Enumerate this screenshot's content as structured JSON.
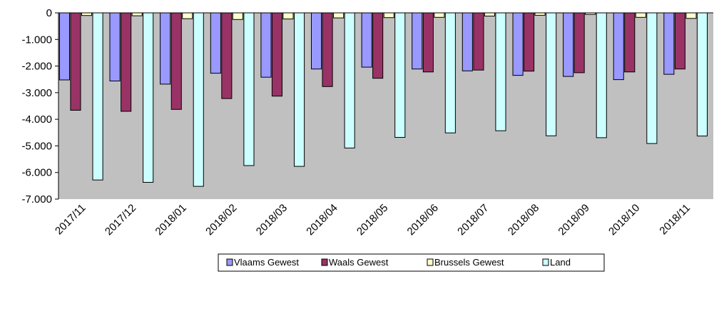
{
  "chart_data": {
    "type": "bar",
    "categories": [
      "2017/11",
      "2017/12",
      "2018/01",
      "2018/02",
      "2018/03",
      "2018/04",
      "2018/05",
      "2018/06",
      "2018/07",
      "2018/08",
      "2018/09",
      "2018/10",
      "2018/11"
    ],
    "series": [
      {
        "name": "Vlaams Gewest",
        "color": "#9999ff",
        "values": [
          -2520,
          -2560,
          -2680,
          -2270,
          -2420,
          -2110,
          -2040,
          -2110,
          -2180,
          -2350,
          -2390,
          -2510,
          -2310
        ]
      },
      {
        "name": "Waals Gewest",
        "color": "#993366",
        "values": [
          -3660,
          -3700,
          -3630,
          -3220,
          -3130,
          -2770,
          -2460,
          -2220,
          -2150,
          -2190,
          -2250,
          -2220,
          -2110
        ]
      },
      {
        "name": "Brussels Gewest",
        "color": "#ffffcc",
        "values": [
          -100,
          -110,
          -220,
          -250,
          -230,
          -190,
          -180,
          -170,
          -120,
          -90,
          -60,
          -170,
          -210
        ]
      },
      {
        "name": "Land",
        "color": "#ccffff",
        "values": [
          -6280,
          -6370,
          -6520,
          -5740,
          -5770,
          -5080,
          -4680,
          -4510,
          -4430,
          -4620,
          -4690,
          -4910,
          -4630
        ]
      }
    ],
    "yticks": [
      "0",
      "-1.000",
      "-2.000",
      "-3.000",
      "-4.000",
      "-5.000",
      "-6.000",
      "-7.000"
    ],
    "ylim": [
      -7000,
      0
    ],
    "plot_background": "#c0c0c0",
    "legend_position": "bottom"
  }
}
